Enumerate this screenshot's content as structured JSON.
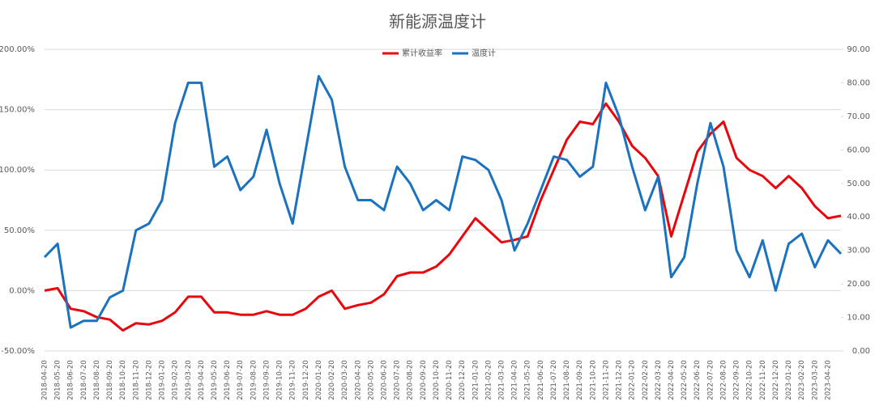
{
  "chart_data": {
    "type": "line",
    "title": "新能源温度计",
    "categories": [
      "2018-04-20",
      "2018-05-20",
      "2018-06-20",
      "2018-07-20",
      "2018-08-20",
      "2018-09-20",
      "2018-10-20",
      "2018-11-20",
      "2018-12-20",
      "2019-01-20",
      "2019-02-20",
      "2019-03-20",
      "2019-04-20",
      "2019-05-20",
      "2019-06-20",
      "2019-07-20",
      "2019-08-20",
      "2019-09-20",
      "2019-10-20",
      "2019-11-20",
      "2019-12-20",
      "2020-01-20",
      "2020-02-20",
      "2020-03-20",
      "2020-04-20",
      "2020-05-20",
      "2020-06-20",
      "2020-07-20",
      "2020-08-20",
      "2020-09-20",
      "2020-10-20",
      "2020-11-20",
      "2020-12-20",
      "2021-01-20",
      "2021-02-20",
      "2021-03-20",
      "2021-04-20",
      "2021-05-20",
      "2021-06-20",
      "2021-07-20",
      "2021-08-20",
      "2021-09-20",
      "2021-10-20",
      "2021-11-20",
      "2021-12-20",
      "2022-01-20",
      "2022-02-20",
      "2022-03-20",
      "2022-04-20",
      "2022-05-20",
      "2022-06-20",
      "2022-07-20",
      "2022-08-20",
      "2022-09-20",
      "2022-10-20",
      "2022-11-20",
      "2022-12-20",
      "2023-01-20",
      "2023-02-20",
      "2023-03-20",
      "2023-04-20",
      null
    ],
    "series": [
      {
        "name": "累计收益率",
        "color": "#e8060c",
        "values": [
          0,
          2,
          -15,
          -17,
          -22,
          -24,
          -33,
          -27,
          -28,
          -25,
          -18,
          -5,
          -5,
          -18,
          -18,
          -20,
          -20,
          -17,
          -20,
          -20,
          -15,
          -5,
          0,
          -15,
          -12,
          -10,
          -3,
          12,
          15,
          15,
          20,
          30,
          45,
          60,
          50,
          40,
          42,
          45,
          75,
          100,
          125,
          140,
          138,
          155,
          140,
          120,
          110,
          95,
          45,
          80,
          115,
          130,
          140,
          110,
          100,
          95,
          85,
          95,
          85,
          70,
          60,
          62
        ]
      },
      {
        "name": "温度计",
        "color": "#1b72be",
        "axis": "y2",
        "values": [
          28,
          32,
          7,
          9,
          9,
          16,
          18,
          36,
          38,
          45,
          68,
          80,
          80,
          55,
          58,
          48,
          52,
          66,
          50,
          38,
          60,
          82,
          75,
          55,
          45,
          45,
          42,
          55,
          50,
          42,
          45,
          42,
          58,
          57,
          54,
          45,
          30,
          38,
          48,
          58,
          57,
          52,
          55,
          80,
          70,
          55,
          42,
          52,
          22,
          28,
          50,
          68,
          55,
          30,
          22,
          33,
          18,
          32,
          35,
          25,
          33,
          29
        ]
      }
    ],
    "ylim": [
      -50,
      200
    ],
    "yticks": [
      {
        "value": -50,
        "label": "-50.00%"
      },
      {
        "value": 0,
        "label": "0.00%"
      },
      {
        "value": 50,
        "label": "50.00%"
      },
      {
        "value": 100,
        "label": "100.00%"
      },
      {
        "value": 150,
        "label": "150.00%"
      },
      {
        "value": 200,
        "label": "200.00%"
      }
    ],
    "y2lim": [
      0,
      90
    ],
    "y2ticks": [
      {
        "value": 0,
        "label": "0.00"
      },
      {
        "value": 10,
        "label": "10.00"
      },
      {
        "value": 20,
        "label": "20.00"
      },
      {
        "value": 30,
        "label": "30.00"
      },
      {
        "value": 40,
        "label": "40.00"
      },
      {
        "value": 50,
        "label": "50.00"
      },
      {
        "value": 60,
        "label": "60.00"
      },
      {
        "value": 70,
        "label": "70.00"
      },
      {
        "value": 80,
        "label": "80.00"
      },
      {
        "value": 90,
        "label": "90.00"
      }
    ],
    "grid": true,
    "legend": "top"
  }
}
